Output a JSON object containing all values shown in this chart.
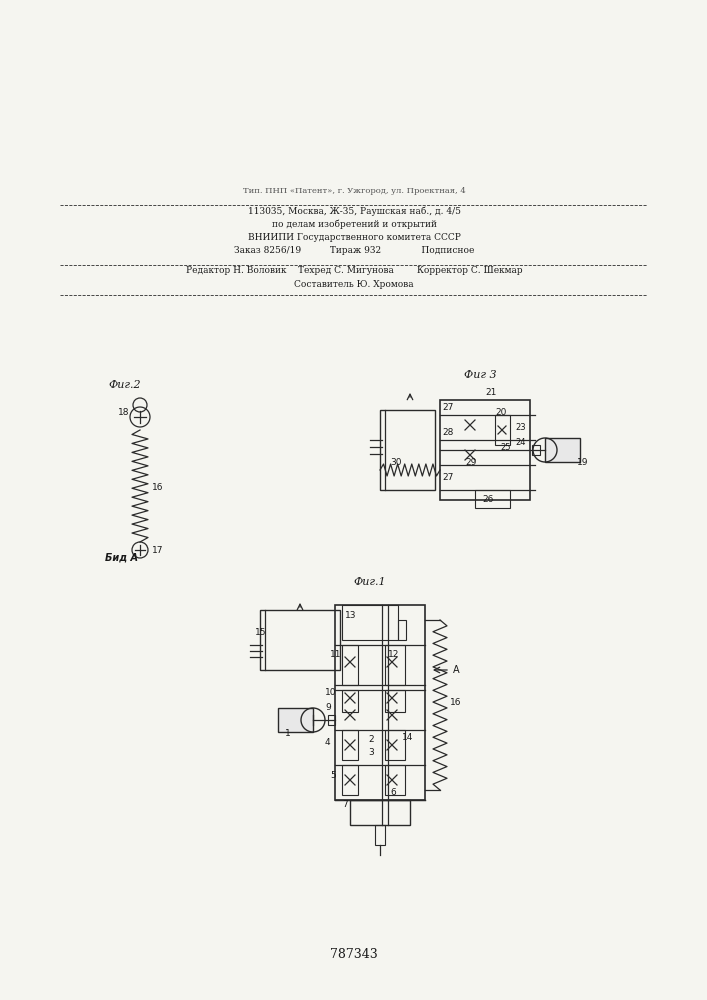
{
  "patent_number": "787343",
  "background_color": "#f5f5f0",
  "line_color": "#2a2a2a",
  "text_color": "#1a1a1a",
  "fig1_caption": "Фиг.1",
  "fig2_caption": "Фиг.2",
  "fig3_caption": "Фиг 3",
  "view_label": "Бид А",
  "arrow_label": "А",
  "footer_lines": [
    "Составитель Ю. Хромова",
    "Редактор Н. Воловик   Техред С. Мигунова        Корректор С. Шекмар",
    "Заказ 8256/19        Тираж 932          Подписное",
    "ВНИИПИ Государственного комитета СССР",
    "по делам изобретений и открытий",
    "113035, Москва, Ж-35, Раушская наб., д. 4/5",
    "Тип. ППП «Патент», г. Ужгород, ул. Проектная, 4"
  ]
}
